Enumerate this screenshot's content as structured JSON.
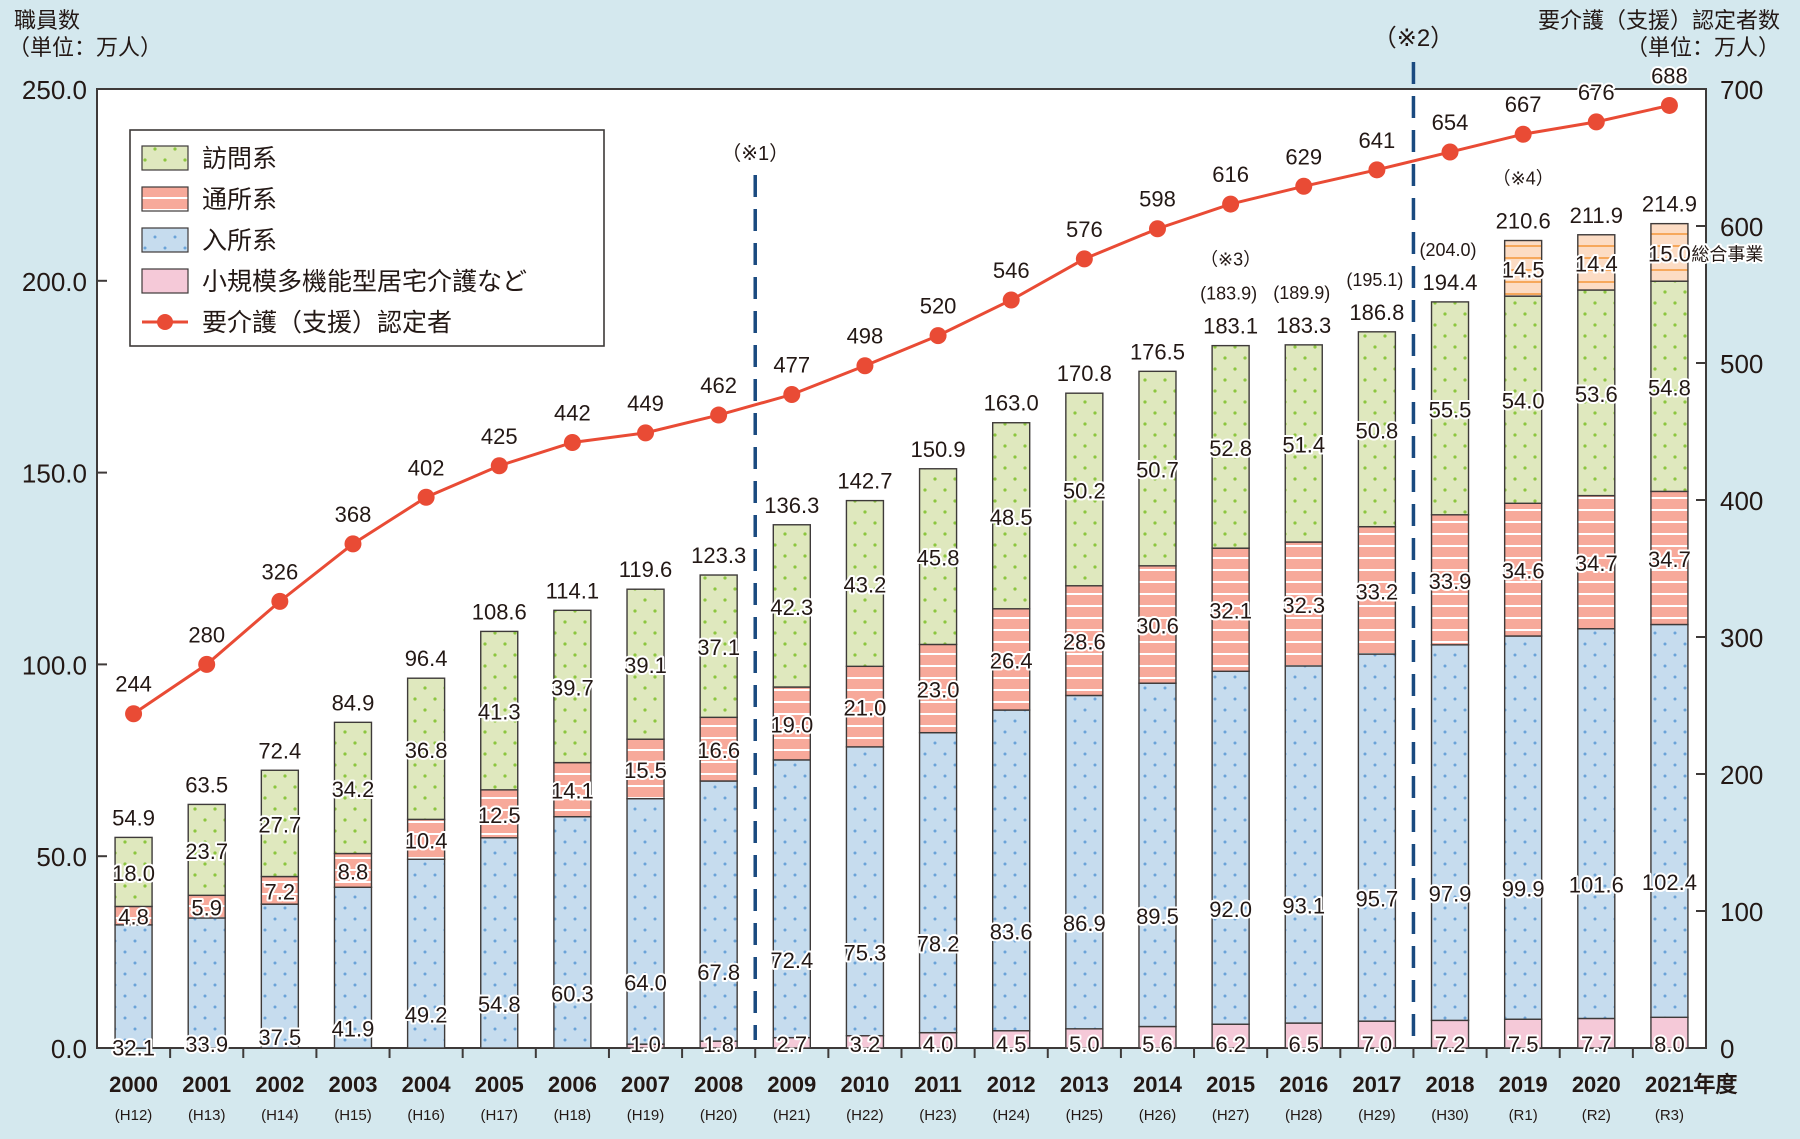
{
  "chart_data": {
    "type": "bar",
    "stacked": true,
    "left_axis_title": [
      "職員数",
      "（単位：万人）"
    ],
    "right_axis_title": [
      "要介護（支援）認定者数",
      "（単位：万人）"
    ],
    "categories": [
      "2000",
      "2001",
      "2002",
      "2003",
      "2004",
      "2005",
      "2006",
      "2007",
      "2008",
      "2009",
      "2010",
      "2011",
      "2012",
      "2013",
      "2014",
      "2015",
      "2016",
      "2017",
      "2018",
      "2019",
      "2020",
      "2021"
    ],
    "category_sublabels": [
      "(H12)",
      "(H13)",
      "(H14)",
      "(H15)",
      "(H16)",
      "(H17)",
      "(H18)",
      "(H19)",
      "(H20)",
      "(H21)",
      "(H22)",
      "(H23)",
      "(H24)",
      "(H25)",
      "(H26)",
      "(H27)",
      "(H28)",
      "(H29)",
      "(H30)",
      "(R1)",
      "(R2)",
      "(R3)"
    ],
    "x_suffix": "年度",
    "left_axis": {
      "range": [
        0,
        250
      ],
      "ticks": [
        "0.0",
        "50.0",
        "100.0",
        "150.0",
        "200.0",
        "250.0"
      ]
    },
    "right_axis": {
      "range": [
        0,
        700
      ],
      "ticks": [
        "0",
        "100",
        "200",
        "300",
        "400",
        "500",
        "600",
        "700"
      ]
    },
    "series": [
      {
        "name": "小規模多機能型居宅介護など",
        "color": "#f5c9d8",
        "pattern": "plain",
        "values": [
          null,
          null,
          null,
          null,
          null,
          null,
          null,
          1.0,
          1.8,
          2.7,
          3.2,
          4.0,
          4.5,
          5.0,
          5.6,
          6.2,
          6.5,
          7.0,
          7.2,
          7.5,
          7.7,
          8.0
        ]
      },
      {
        "name": "入所系",
        "color": "#c6dcee",
        "pattern": "dots-blue",
        "values": [
          32.1,
          33.9,
          37.5,
          41.9,
          49.2,
          54.8,
          60.3,
          64.0,
          67.8,
          72.4,
          75.3,
          78.2,
          83.6,
          86.9,
          89.5,
          92.0,
          93.1,
          95.7,
          97.9,
          99.9,
          101.6,
          102.4
        ]
      },
      {
        "name": "通所系",
        "color": "#f7a99a",
        "pattern": "stripes-white",
        "values": [
          4.8,
          5.9,
          7.2,
          8.8,
          10.4,
          12.5,
          14.1,
          15.5,
          16.6,
          19.0,
          21.0,
          23.0,
          26.4,
          28.6,
          30.6,
          32.1,
          32.3,
          33.2,
          33.9,
          34.6,
          34.7,
          34.7
        ]
      },
      {
        "name": "訪問系",
        "color": "#dfe8be",
        "pattern": "dots-green",
        "values": [
          18.0,
          23.7,
          27.7,
          34.2,
          36.8,
          41.3,
          39.7,
          39.1,
          37.1,
          42.3,
          43.2,
          45.8,
          48.5,
          50.2,
          50.7,
          52.8,
          51.4,
          50.8,
          55.5,
          54.0,
          53.6,
          54.8
        ]
      },
      {
        "name": "総合事業",
        "color": "#fcdcc4",
        "pattern": "stripes-orange",
        "values": [
          null,
          null,
          null,
          null,
          null,
          null,
          null,
          null,
          null,
          null,
          null,
          null,
          null,
          null,
          null,
          null,
          null,
          null,
          null,
          14.5,
          14.4,
          15.0
        ]
      }
    ],
    "totals": [
      "54.9",
      "63.5",
      "72.4",
      "84.9",
      "96.4",
      "108.6",
      "114.1",
      "119.6",
      "123.3",
      "136.3",
      "142.7",
      "150.9",
      "163.0",
      "170.8",
      "176.5",
      "183.1",
      "183.3",
      "186.8",
      "194.4",
      "210.6",
      "211.9",
      "214.9"
    ],
    "totals_paren": [
      null,
      null,
      null,
      null,
      null,
      null,
      null,
      null,
      null,
      null,
      null,
      null,
      null,
      null,
      null,
      "(183.9)",
      "(189.9)",
      "(195.1)",
      "(204.0)",
      null,
      null,
      null
    ],
    "line_series": {
      "name": "要介護（支援）認定者",
      "color": "#e94b35",
      "axis": "right",
      "values": [
        244,
        280,
        326,
        368,
        402,
        425,
        442,
        449,
        462,
        477,
        498,
        520,
        546,
        576,
        598,
        616,
        629,
        641,
        654,
        667,
        676,
        688
      ]
    },
    "legend": {
      "placement": "top-left",
      "items": [
        "訪問系",
        "通所系",
        "入所系",
        "小規模多機能型居宅介護など",
        "要介護（支援）認定者"
      ]
    },
    "side_label": "総合事業",
    "annotations": [
      {
        "label": "（※1）",
        "type": "dashed-vline",
        "between": [
          "2008",
          "2009"
        ]
      },
      {
        "label": "（※2）",
        "type": "dashed-vline",
        "between": [
          "2017",
          "2018"
        ]
      },
      {
        "label": "（※3）",
        "attached_to": "2015"
      },
      {
        "label": "（※4）",
        "attached_to": "2019"
      }
    ]
  }
}
